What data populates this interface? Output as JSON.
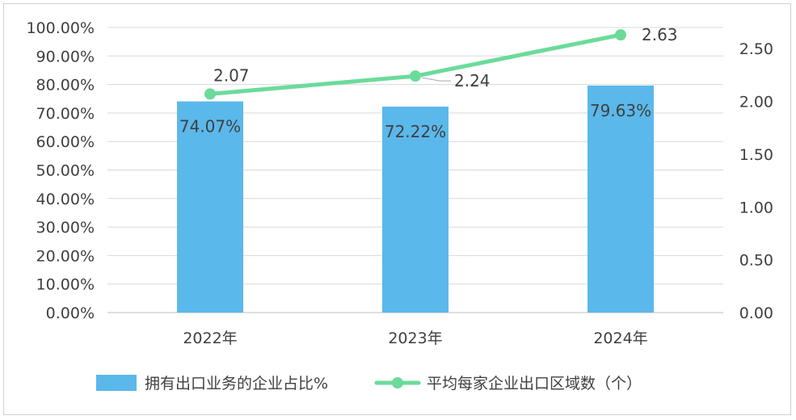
{
  "chart_data": {
    "type": "bar",
    "categories": [
      "2022年",
      "2023年",
      "2024年"
    ],
    "left_axis": {
      "ylim": [
        0,
        100
      ],
      "ticks": [
        "0.00%",
        "10.00%",
        "20.00%",
        "30.00%",
        "40.00%",
        "50.00%",
        "60.00%",
        "70.00%",
        "80.00%",
        "90.00%",
        "100.00%"
      ]
    },
    "right_axis": {
      "ylim": [
        0,
        2.7
      ],
      "ticks": [
        "0.00",
        "0.50",
        "1.00",
        "1.50",
        "2.00",
        "2.50"
      ]
    },
    "series": [
      {
        "name": "拥有出口业务的企业占比%",
        "type": "bar",
        "axis": "left",
        "values": [
          74.07,
          72.22,
          79.63
        ],
        "labels": [
          "74.07%",
          "72.22%",
          "79.63%"
        ],
        "color": "#5bb8ea"
      },
      {
        "name": "平均每家企业出口区域数（个）",
        "type": "line",
        "axis": "right",
        "values": [
          2.07,
          2.24,
          2.63
        ],
        "labels": [
          "2.07",
          "2.24",
          "2.63"
        ],
        "color": "#6bdb9a"
      }
    ],
    "grid": true,
    "legend": "bottom"
  }
}
